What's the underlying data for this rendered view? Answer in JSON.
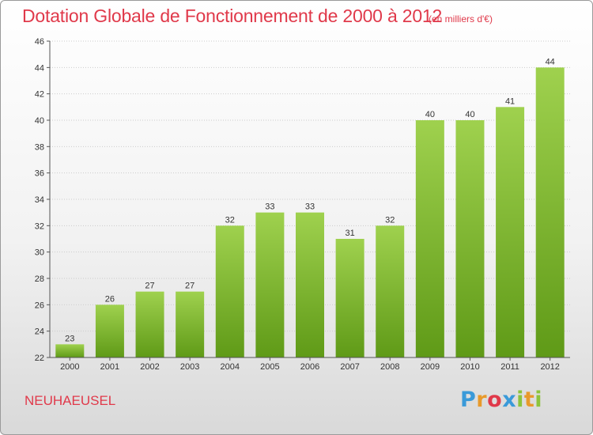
{
  "header": {
    "title": "Dotation Globale de Fonctionnement de 2000 à 2012",
    "subtitle": "(en milliers d'€)"
  },
  "footer": {
    "commune": "NEUHAEUSEL",
    "logo_letters": [
      "P",
      "r",
      "o",
      "x",
      "i",
      "t",
      "i"
    ],
    "logo_colors": [
      "#3a9ad9",
      "#e89a2b",
      "#e0394a",
      "#3a9ad9",
      "#8cc43c",
      "#e89a2b",
      "#8cc43c"
    ]
  },
  "colors": {
    "bar_light": "#9fd14e",
    "bar_dark": "#5f9a17",
    "accent": "#e0394a",
    "axis": "#555555",
    "grid": "#cccccc"
  },
  "chart_data": {
    "type": "bar",
    "title": "Dotation Globale de Fonctionnement de 2000 à 2012",
    "subtitle": "(en milliers d'€)",
    "categories": [
      "2000",
      "2001",
      "2002",
      "2003",
      "2004",
      "2005",
      "2006",
      "2007",
      "2008",
      "2009",
      "2010",
      "2011",
      "2012"
    ],
    "values": [
      23,
      26,
      27,
      27,
      32,
      33,
      33,
      31,
      32,
      40,
      40,
      41,
      44
    ],
    "ylim": [
      22,
      46
    ],
    "yticks": [
      22,
      24,
      26,
      28,
      30,
      32,
      34,
      36,
      38,
      40,
      42,
      44,
      46
    ],
    "grid": true,
    "data_labels": true
  }
}
